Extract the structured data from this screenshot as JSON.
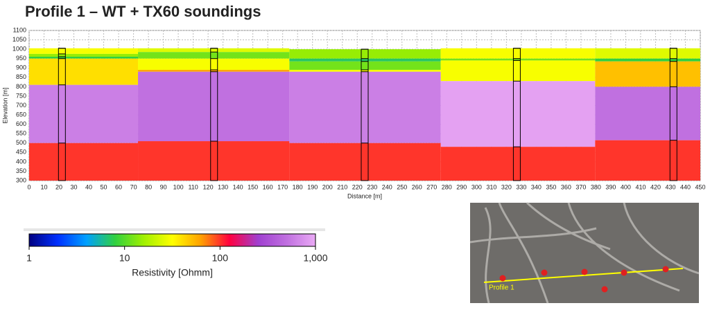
{
  "chart_data": {
    "type": "resistivity-section",
    "title": "Profile 1 – WT + TX60 soundings",
    "xlabel": "Distance [m]",
    "ylabel": "Elevation [m]",
    "xlim": [
      0,
      450
    ],
    "xticks": [
      0,
      10,
      20,
      30,
      40,
      50,
      60,
      70,
      80,
      90,
      100,
      110,
      120,
      130,
      140,
      150,
      160,
      170,
      180,
      190,
      200,
      210,
      220,
      230,
      240,
      250,
      260,
      270,
      280,
      290,
      300,
      310,
      320,
      330,
      340,
      350,
      360,
      370,
      380,
      390,
      400,
      410,
      420,
      430,
      440,
      450
    ],
    "ylim": [
      300,
      1100
    ],
    "yticks": [
      300,
      350,
      400,
      450,
      500,
      550,
      600,
      650,
      700,
      750,
      800,
      850,
      900,
      950,
      1000,
      1050,
      1100
    ],
    "grid": true,
    "soundings": [
      {
        "x": 22,
        "tops": [
          1005,
          975,
          960,
          950,
          810,
          500
        ],
        "resistivity": [
          30,
          15,
          8,
          40,
          600,
          100
        ]
      },
      {
        "x": 124,
        "tops": [
          1005,
          985,
          950,
          890,
          880,
          510
        ],
        "resistivity": [
          25,
          12,
          30,
          60,
          500,
          100
        ]
      },
      {
        "x": 225,
        "tops": [
          1000,
          950,
          935,
          890,
          880,
          500
        ],
        "resistivity": [
          15,
          7,
          12,
          30,
          600,
          100
        ]
      },
      {
        "x": 327,
        "tops": [
          1005,
          950,
          940,
          830,
          480
        ],
        "resistivity": [
          30,
          12,
          30,
          900,
          100
        ]
      },
      {
        "x": 432,
        "tops": [
          1005,
          950,
          935,
          800,
          515
        ],
        "resistivity": [
          25,
          8,
          50,
          500,
          100
        ]
      }
    ],
    "colorbar": {
      "label": "Resistivity [Ohmm]",
      "log_scale": true,
      "lim": [
        1,
        1000
      ],
      "ticks": [
        1,
        10,
        100,
        {
          "value": 1000,
          "label": "1,000"
        }
      ],
      "colormap": [
        "#000080",
        "#0030ff",
        "#00a0ff",
        "#30d040",
        "#a0f000",
        "#ffff00",
        "#ffa000",
        "#ff0040",
        "#a040d0",
        "#c070e0",
        "#eaaaf5"
      ]
    },
    "map_label": "Profile 1"
  }
}
